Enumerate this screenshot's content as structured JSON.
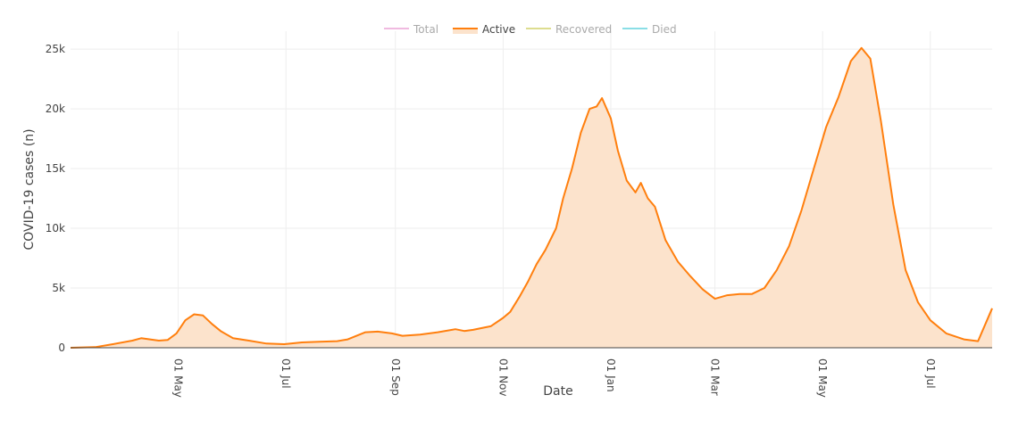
{
  "chart_data": {
    "type": "area",
    "title": "",
    "xlabel": "Date",
    "ylabel": "COVID-19 cases (n)",
    "x_range": [
      "2020-03-01",
      "2021-08-05"
    ],
    "ylim": [
      0,
      26500
    ],
    "y_ticks": [
      0,
      5000,
      10000,
      15000,
      20000,
      25000
    ],
    "y_tick_labels": [
      "0",
      "5k",
      "10k",
      "15k",
      "20k",
      "25k"
    ],
    "x_ticks": [
      "2020-05-01",
      "2020-07-01",
      "2020-09-01",
      "2020-11-01",
      "2021-01-01",
      "2021-03-01",
      "2021-05-01",
      "2021-07-01"
    ],
    "x_tick_labels": [
      "01 May",
      "01 Jul",
      "01 Sep",
      "01 Nov",
      "01 Jan",
      "01 Mar",
      "01 May",
      "01 Jul"
    ],
    "grid": true,
    "legend_position": "top-center",
    "legend": [
      {
        "name": "Total",
        "color": "#e377c2",
        "active": false
      },
      {
        "name": "Active",
        "color": "#ff7f0e",
        "active": true
      },
      {
        "name": "Recovered",
        "color": "#bcbd22",
        "active": false
      },
      {
        "name": "Died",
        "color": "#17becf",
        "active": false
      }
    ],
    "series": [
      {
        "name": "Active",
        "color": "#ff7f0e",
        "fill": "#fce3cc",
        "points": [
          [
            "2020-03-01",
            0
          ],
          [
            "2020-03-15",
            50
          ],
          [
            "2020-03-25",
            300
          ],
          [
            "2020-04-05",
            600
          ],
          [
            "2020-04-10",
            800
          ],
          [
            "2020-04-20",
            600
          ],
          [
            "2020-04-25",
            650
          ],
          [
            "2020-04-30",
            1200
          ],
          [
            "2020-05-05",
            2300
          ],
          [
            "2020-05-10",
            2800
          ],
          [
            "2020-05-15",
            2700
          ],
          [
            "2020-05-20",
            2000
          ],
          [
            "2020-05-25",
            1400
          ],
          [
            "2020-06-01",
            800
          ],
          [
            "2020-06-10",
            600
          ],
          [
            "2020-06-20",
            350
          ],
          [
            "2020-06-30",
            300
          ],
          [
            "2020-07-10",
            450
          ],
          [
            "2020-07-20",
            500
          ],
          [
            "2020-07-30",
            550
          ],
          [
            "2020-08-05",
            700
          ],
          [
            "2020-08-10",
            1000
          ],
          [
            "2020-08-15",
            1300
          ],
          [
            "2020-08-22",
            1350
          ],
          [
            "2020-08-30",
            1200
          ],
          [
            "2020-09-05",
            1000
          ],
          [
            "2020-09-15",
            1100
          ],
          [
            "2020-09-25",
            1300
          ],
          [
            "2020-10-05",
            1550
          ],
          [
            "2020-10-10",
            1400
          ],
          [
            "2020-10-15",
            1500
          ],
          [
            "2020-10-20",
            1650
          ],
          [
            "2020-10-25",
            1800
          ],
          [
            "2020-11-01",
            2500
          ],
          [
            "2020-11-05",
            3000
          ],
          [
            "2020-11-10",
            4200
          ],
          [
            "2020-11-15",
            5500
          ],
          [
            "2020-11-20",
            7000
          ],
          [
            "2020-11-25",
            8200
          ],
          [
            "2020-12-01",
            10000
          ],
          [
            "2020-12-05",
            12500
          ],
          [
            "2020-12-10",
            15000
          ],
          [
            "2020-12-15",
            18000
          ],
          [
            "2020-12-20",
            20000
          ],
          [
            "2020-12-24",
            20200
          ],
          [
            "2020-12-27",
            20900
          ],
          [
            "2021-01-01",
            19200
          ],
          [
            "2021-01-05",
            16500
          ],
          [
            "2021-01-10",
            14000
          ],
          [
            "2021-01-15",
            13000
          ],
          [
            "2021-01-18",
            13800
          ],
          [
            "2021-01-22",
            12500
          ],
          [
            "2021-01-26",
            11800
          ],
          [
            "2021-02-01",
            9000
          ],
          [
            "2021-02-08",
            7200
          ],
          [
            "2021-02-15",
            6000
          ],
          [
            "2021-02-22",
            4900
          ],
          [
            "2021-03-01",
            4100
          ],
          [
            "2021-03-08",
            4400
          ],
          [
            "2021-03-15",
            4500
          ],
          [
            "2021-03-22",
            4500
          ],
          [
            "2021-03-29",
            5000
          ],
          [
            "2021-04-05",
            6500
          ],
          [
            "2021-04-12",
            8500
          ],
          [
            "2021-04-19",
            11500
          ],
          [
            "2021-04-26",
            15000
          ],
          [
            "2021-05-03",
            18500
          ],
          [
            "2021-05-10",
            21000
          ],
          [
            "2021-05-17",
            24000
          ],
          [
            "2021-05-23",
            25100
          ],
          [
            "2021-05-28",
            24200
          ],
          [
            "2021-06-03",
            19000
          ],
          [
            "2021-06-10",
            12000
          ],
          [
            "2021-06-17",
            6500
          ],
          [
            "2021-06-24",
            3800
          ],
          [
            "2021-07-01",
            2300
          ],
          [
            "2021-07-10",
            1200
          ],
          [
            "2021-07-20",
            700
          ],
          [
            "2021-07-28",
            550
          ],
          [
            "2021-08-05",
            3300
          ]
        ]
      }
    ]
  }
}
